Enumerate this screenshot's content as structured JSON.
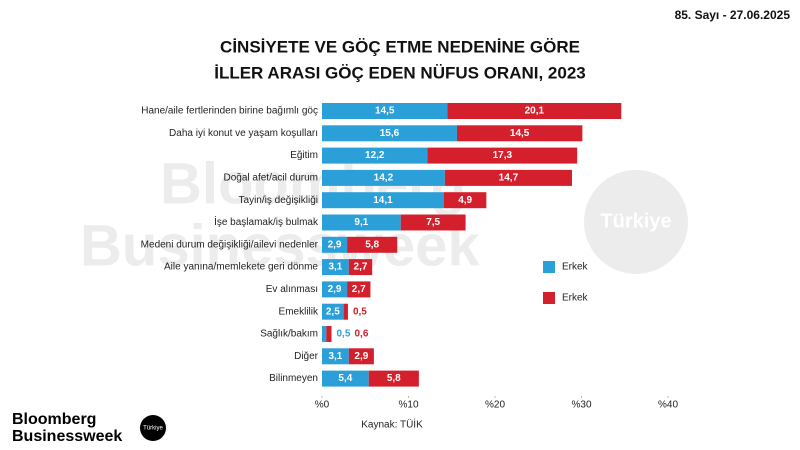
{
  "header": {
    "issue": "85. Sayı - 27.06.2025"
  },
  "watermark": {
    "lines": [
      "Bloomberg",
      "Businessweek"
    ],
    "badge": "Türkiye"
  },
  "logo": {
    "lines": [
      "Bloomberg",
      "Businessweek"
    ],
    "badge": "Türkiye"
  },
  "chart_data": {
    "type": "stacked-bar-horizontal",
    "title": [
      "CİNSİYETE VE GÖÇ ETME NEDENİNE GÖRE",
      "İLLER ARASI GÖÇ EDEN NÜFUS ORANI, 2023"
    ],
    "source": "Kaynak: TÜİK",
    "categories": [
      "Hane/aile fertlerinden birine bağımlı göç",
      "Daha iyi konut ve yaşam koşulları",
      "Eğitim",
      "Doğal afet/acil durum",
      "Tayin/iş değişikliği",
      "İşe başlamak/iş bulmak",
      "Medeni durum değişikliği/ailevi nedenler",
      "Aile yanına/memlekete geri dönme",
      "Ev alınması",
      "Emeklilik",
      "Sağlık/bakım",
      "Diğer",
      "Bilinmeyen"
    ],
    "series": [
      {
        "name": "Erkek",
        "color": "#2a9fd8",
        "values": [
          14.5,
          15.6,
          12.2,
          14.2,
          14.1,
          9.1,
          2.9,
          3.1,
          2.9,
          2.5,
          0.5,
          3.1,
          5.4
        ],
        "value_labels": [
          "14,5",
          "15,6",
          "12,2",
          "14,2",
          "14,1",
          "9,1",
          "2,9",
          "3,1",
          "2,9",
          "2,5",
          "0,5",
          "3,1",
          "5,4"
        ]
      },
      {
        "name": "Erkek",
        "color": "#d4202d",
        "values": [
          20.1,
          14.5,
          17.3,
          14.7,
          4.9,
          7.5,
          5.8,
          2.7,
          2.7,
          0.5,
          0.6,
          2.9,
          5.8
        ],
        "value_labels": [
          "20,1",
          "14,5",
          "17,3",
          "14,7",
          "4,9",
          "7,5",
          "5,8",
          "2,7",
          "2,7",
          "0,5",
          "0,6",
          "2,9",
          "5,8"
        ]
      }
    ],
    "xlim": [
      0,
      40
    ],
    "xticks": [
      {
        "value": 0,
        "label": "%0"
      },
      {
        "value": 10,
        "label": "%10"
      },
      {
        "value": 20,
        "label": "%20"
      },
      {
        "value": 30,
        "label": "%30"
      },
      {
        "value": 40,
        "label": "%40"
      }
    ],
    "legend": "right"
  }
}
